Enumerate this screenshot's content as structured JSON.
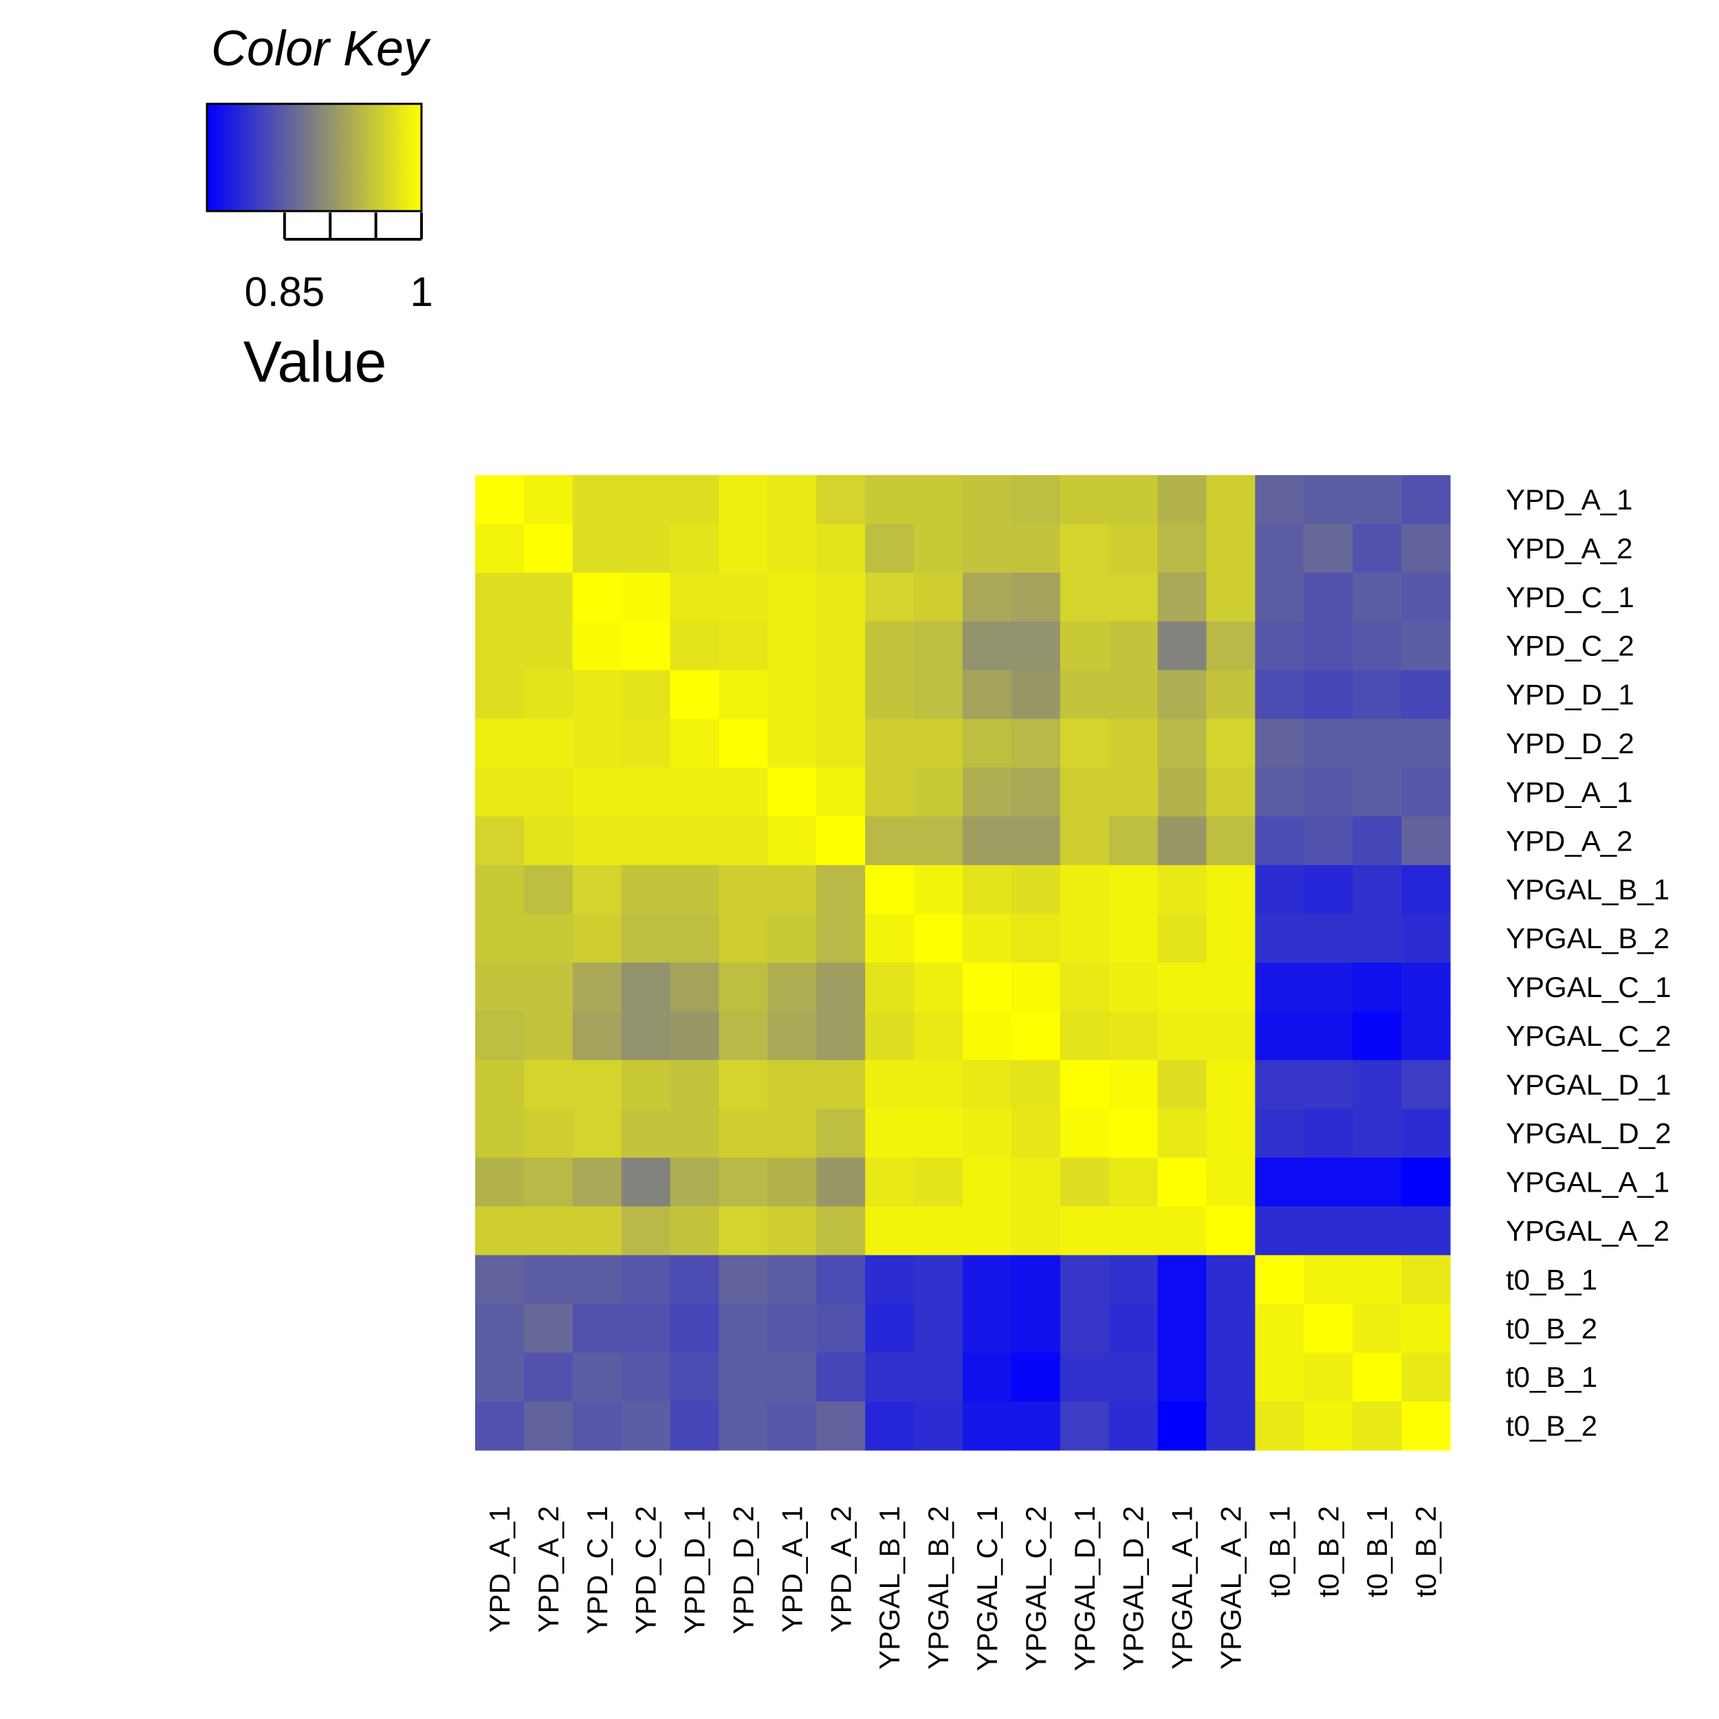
{
  "chart_data": {
    "type": "heatmap",
    "title": "",
    "row_labels": [
      "YPD_A_1",
      "YPD_A_2",
      "YPD_C_1",
      "YPD_C_2",
      "YPD_D_1",
      "YPD_D_2",
      "YPD_A_1",
      "YPD_A_2",
      "YPGAL_B_1",
      "YPGAL_B_2",
      "YPGAL_C_1",
      "YPGAL_C_2",
      "YPGAL_D_1",
      "YPGAL_D_2",
      "YPGAL_A_1",
      "YPGAL_A_2",
      "t0_B_1",
      "t0_B_2",
      "t0_B_1",
      "t0_B_2"
    ],
    "col_labels": [
      "YPD_A_1",
      "YPD_A_2",
      "YPD_C_1",
      "YPD_C_2",
      "YPD_D_1",
      "YPD_D_2",
      "YPD_A_1",
      "YPD_A_2",
      "YPGAL_B_1",
      "YPGAL_B_2",
      "YPGAL_C_1",
      "YPGAL_C_2",
      "YPGAL_D_1",
      "YPGAL_D_2",
      "YPGAL_A_1",
      "YPGAL_A_2",
      "t0_B_1",
      "t0_B_2",
      "t0_B_1",
      "t0_B_2"
    ],
    "values": [
      [
        1.0,
        0.99,
        0.97,
        0.97,
        0.97,
        0.985,
        0.98,
        0.96,
        0.95,
        0.95,
        0.945,
        0.94,
        0.95,
        0.95,
        0.93,
        0.955,
        0.855,
        0.85,
        0.85,
        0.84
      ],
      [
        0.99,
        1.0,
        0.97,
        0.97,
        0.975,
        0.985,
        0.98,
        0.975,
        0.94,
        0.95,
        0.945,
        0.945,
        0.96,
        0.955,
        0.935,
        0.955,
        0.85,
        0.86,
        0.84,
        0.855
      ],
      [
        0.97,
        0.97,
        1.0,
        0.995,
        0.98,
        0.98,
        0.985,
        0.98,
        0.96,
        0.955,
        0.92,
        0.915,
        0.96,
        0.96,
        0.92,
        0.955,
        0.85,
        0.84,
        0.85,
        0.845
      ],
      [
        0.97,
        0.97,
        0.995,
        1.0,
        0.975,
        0.978,
        0.985,
        0.98,
        0.945,
        0.94,
        0.9,
        0.9,
        0.95,
        0.945,
        0.885,
        0.935,
        0.845,
        0.84,
        0.845,
        0.85
      ],
      [
        0.97,
        0.975,
        0.98,
        0.975,
        1.0,
        0.99,
        0.985,
        0.98,
        0.945,
        0.94,
        0.915,
        0.905,
        0.945,
        0.945,
        0.925,
        0.945,
        0.835,
        0.83,
        0.835,
        0.83
      ],
      [
        0.985,
        0.985,
        0.98,
        0.978,
        0.99,
        1.0,
        0.985,
        0.98,
        0.955,
        0.955,
        0.94,
        0.935,
        0.96,
        0.955,
        0.935,
        0.96,
        0.855,
        0.85,
        0.85,
        0.85
      ],
      [
        0.98,
        0.98,
        0.985,
        0.985,
        0.985,
        0.985,
        1.0,
        0.99,
        0.955,
        0.95,
        0.925,
        0.92,
        0.955,
        0.955,
        0.93,
        0.955,
        0.85,
        0.845,
        0.85,
        0.845
      ],
      [
        0.96,
        0.975,
        0.98,
        0.98,
        0.98,
        0.98,
        0.99,
        1.0,
        0.935,
        0.935,
        0.91,
        0.91,
        0.955,
        0.94,
        0.905,
        0.94,
        0.835,
        0.84,
        0.83,
        0.855
      ],
      [
        0.95,
        0.94,
        0.96,
        0.945,
        0.945,
        0.955,
        0.955,
        0.935,
        1.0,
        0.99,
        0.975,
        0.97,
        0.985,
        0.99,
        0.98,
        0.99,
        0.805,
        0.8,
        0.81,
        0.8
      ],
      [
        0.95,
        0.95,
        0.955,
        0.94,
        0.94,
        0.955,
        0.95,
        0.935,
        0.99,
        1.0,
        0.985,
        0.98,
        0.985,
        0.99,
        0.975,
        0.99,
        0.81,
        0.81,
        0.81,
        0.805
      ],
      [
        0.945,
        0.945,
        0.92,
        0.9,
        0.915,
        0.94,
        0.925,
        0.91,
        0.975,
        0.985,
        1.0,
        0.995,
        0.98,
        0.985,
        0.99,
        0.99,
        0.785,
        0.785,
        0.78,
        0.785
      ],
      [
        0.94,
        0.945,
        0.915,
        0.9,
        0.905,
        0.935,
        0.92,
        0.91,
        0.97,
        0.98,
        0.995,
        1.0,
        0.975,
        0.978,
        0.985,
        0.985,
        0.78,
        0.78,
        0.77,
        0.785
      ],
      [
        0.95,
        0.96,
        0.96,
        0.95,
        0.945,
        0.96,
        0.955,
        0.955,
        0.985,
        0.985,
        0.98,
        0.975,
        1.0,
        0.995,
        0.97,
        0.99,
        0.815,
        0.815,
        0.81,
        0.82
      ],
      [
        0.95,
        0.955,
        0.96,
        0.945,
        0.945,
        0.955,
        0.955,
        0.94,
        0.99,
        0.99,
        0.985,
        0.978,
        0.995,
        1.0,
        0.98,
        0.99,
        0.81,
        0.805,
        0.81,
        0.805
      ],
      [
        0.93,
        0.935,
        0.92,
        0.885,
        0.925,
        0.935,
        0.93,
        0.905,
        0.98,
        0.975,
        0.99,
        0.985,
        0.97,
        0.98,
        1.0,
        0.99,
        0.775,
        0.775,
        0.775,
        0.765
      ],
      [
        0.955,
        0.955,
        0.955,
        0.935,
        0.945,
        0.96,
        0.955,
        0.94,
        0.99,
        0.99,
        0.99,
        0.985,
        0.99,
        0.99,
        0.99,
        1.0,
        0.805,
        0.805,
        0.805,
        0.805
      ],
      [
        0.855,
        0.85,
        0.85,
        0.845,
        0.835,
        0.855,
        0.85,
        0.835,
        0.805,
        0.81,
        0.785,
        0.78,
        0.815,
        0.81,
        0.775,
        0.805,
        1.0,
        0.99,
        0.99,
        0.98
      ],
      [
        0.85,
        0.86,
        0.84,
        0.84,
        0.83,
        0.85,
        0.845,
        0.84,
        0.8,
        0.81,
        0.785,
        0.78,
        0.815,
        0.805,
        0.775,
        0.805,
        0.99,
        1.0,
        0.985,
        0.99
      ],
      [
        0.85,
        0.84,
        0.85,
        0.845,
        0.835,
        0.85,
        0.85,
        0.83,
        0.81,
        0.81,
        0.78,
        0.77,
        0.81,
        0.81,
        0.775,
        0.805,
        0.99,
        0.985,
        1.0,
        0.98
      ],
      [
        0.84,
        0.855,
        0.845,
        0.85,
        0.83,
        0.85,
        0.845,
        0.855,
        0.8,
        0.805,
        0.785,
        0.785,
        0.82,
        0.805,
        0.765,
        0.805,
        0.98,
        0.99,
        0.98,
        1.0
      ]
    ],
    "color_scale": {
      "min": 0.765,
      "mid": 0.8825,
      "max": 1.0,
      "low": "#0000ff",
      "midcolor": "#808080",
      "high": "#ffff00"
    },
    "grid": false
  },
  "color_key": {
    "title": "Color Key",
    "xlabel": "Value",
    "tick_labels": [
      {
        "value": 0.85,
        "label": "0.85"
      },
      {
        "value": 1.0,
        "label": "1"
      }
    ],
    "tick_values": [
      0.85,
      0.9,
      0.95,
      1.0
    ]
  }
}
